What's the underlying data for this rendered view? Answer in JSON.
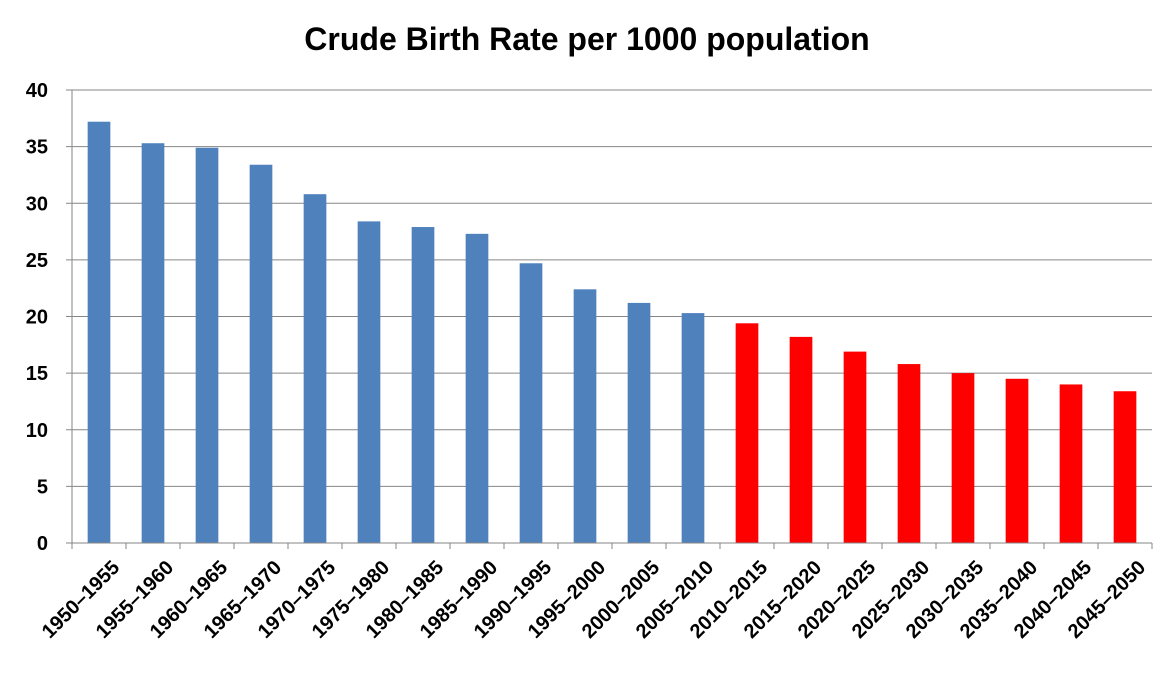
{
  "chart_data": {
    "type": "bar",
    "title": "Crude Birth Rate per 1000 population",
    "xlabel": "",
    "ylabel": "",
    "ylim": [
      0,
      40
    ],
    "yticks": [
      0,
      5,
      10,
      15,
      20,
      25,
      30,
      35,
      40
    ],
    "grid": true,
    "legend": "none",
    "categories": [
      "1950–1955",
      "1955–1960",
      "1960–1965",
      "1965–1970",
      "1970–1975",
      "1975–1980",
      "1980–1985",
      "1985–1990",
      "1990–1995",
      "1995–2000",
      "2000–2005",
      "2005–2010",
      "2010–2015",
      "2015–2020",
      "2020–2025",
      "2025–2030",
      "2030–2035",
      "2035–2040",
      "2040–2045",
      "2045–2050"
    ],
    "values": [
      37.2,
      35.3,
      34.9,
      33.4,
      30.8,
      28.4,
      27.9,
      27.3,
      24.7,
      22.4,
      21.2,
      20.3,
      19.4,
      18.2,
      16.9,
      15.8,
      15.0,
      14.5,
      14.0,
      13.4
    ],
    "bar_colors": [
      "#4f81bd",
      "#4f81bd",
      "#4f81bd",
      "#4f81bd",
      "#4f81bd",
      "#4f81bd",
      "#4f81bd",
      "#4f81bd",
      "#4f81bd",
      "#4f81bd",
      "#4f81bd",
      "#4f81bd",
      "#ff0000",
      "#ff0000",
      "#ff0000",
      "#ff0000",
      "#ff0000",
      "#ff0000",
      "#ff0000",
      "#ff0000"
    ],
    "gridline_color": "#868686",
    "axis_color": "#868686"
  }
}
